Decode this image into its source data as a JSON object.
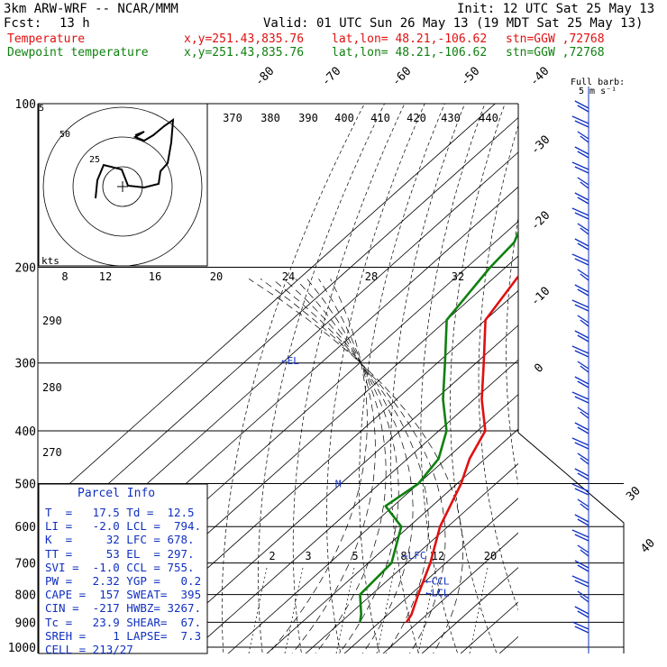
{
  "header": {
    "model": "3km ARW-WRF -- NCAR/MMM",
    "init": "Init: 12 UTC Sat 25 May 13",
    "fcst_label": "Fcst:",
    "fcst_value": "13 h",
    "valid": "Valid: 01 UTC Sun 26 May 13 (19 MDT Sat 25 May 13)",
    "temp_label": "Temperature",
    "dew_label": "Dewpoint temperature",
    "xy": "x,y=251.43,835.76",
    "latlon": "lat,lon= 48.21,-106.62",
    "stn": "stn=GGW ,72768"
  },
  "colors": {
    "temperature": "#e01010",
    "dewpoint": "#108010",
    "parcel": "#1030c0"
  },
  "barb_key": {
    "title": "Full barb:",
    "value": "5 m s⁻¹"
  },
  "hodograph": {
    "units": "kts",
    "ring_labels": [
      "5",
      "50",
      "25"
    ]
  },
  "chart_data": {
    "type": "line",
    "title": "",
    "y_scale": "log",
    "ylim": [
      1000,
      100
    ],
    "pressure_levels": [
      100,
      200,
      300,
      400,
      500,
      600,
      700,
      800,
      900,
      1000
    ],
    "isotherms": [
      -80,
      -70,
      -60,
      -50,
      -40,
      -30,
      -20,
      -10,
      0,
      30,
      40
    ],
    "theta_labels": [
      370,
      380,
      390,
      400,
      410,
      420,
      430,
      440
    ],
    "mixing_ratio_top": [
      8,
      12,
      16,
      20,
      24,
      28,
      32
    ],
    "mixing_ratio_low": [
      2,
      3,
      5,
      8,
      12,
      20
    ],
    "side_scale": [
      290,
      280,
      270
    ],
    "series": [
      {
        "name": "Temperature",
        "points": [
          [
            100,
            -45
          ],
          [
            130,
            -46
          ],
          [
            170,
            -56
          ],
          [
            200,
            -55
          ],
          [
            250,
            -50
          ],
          [
            300,
            -38
          ],
          [
            350,
            -28
          ],
          [
            400,
            -18
          ],
          [
            450,
            -14
          ],
          [
            500,
            -9
          ],
          [
            600,
            -2
          ],
          [
            700,
            6
          ],
          [
            800,
            12
          ],
          [
            870,
            16
          ],
          [
            900,
            17
          ]
        ]
      },
      {
        "name": "Dewpoint temperature",
        "points": [
          [
            100,
            -60
          ],
          [
            130,
            -68
          ],
          [
            160,
            -70
          ],
          [
            180,
            -65
          ],
          [
            200,
            -64
          ],
          [
            250,
            -60
          ],
          [
            300,
            -48
          ],
          [
            350,
            -38
          ],
          [
            400,
            -28
          ],
          [
            450,
            -22
          ],
          [
            500,
            -20
          ],
          [
            550,
            -22
          ],
          [
            600,
            -12
          ],
          [
            700,
            -4
          ],
          [
            800,
            -3
          ],
          [
            870,
            3
          ],
          [
            900,
            5
          ]
        ]
      }
    ],
    "markers": [
      {
        "label": "EL",
        "p": 297
      },
      {
        "label": "M",
        "p": 500
      },
      {
        "label": "LFC",
        "p": 678
      },
      {
        "label": "CCL",
        "p": 755
      },
      {
        "label": "LCL",
        "p": 794
      }
    ]
  },
  "parcel_info": {
    "title": "Parcel Info",
    "rows": [
      "T  =   17.5 Td =  12.5",
      "LI =   -2.0 LCL =  794.",
      "K  =     32 LFC = 678.",
      "TT =     53 EL  = 297.",
      "SVI =  -1.0 CCL = 755.",
      "PW =   2.32 YGP =   0.2",
      "CAPE =  157 SWEAT=  395",
      "CIN =  -217 HWBZ= 3267.",
      "Tc =   23.9 SHEAR=  67.",
      "SREH =    1 LAPSE=  7.3",
      "CELL = 213/27"
    ]
  }
}
